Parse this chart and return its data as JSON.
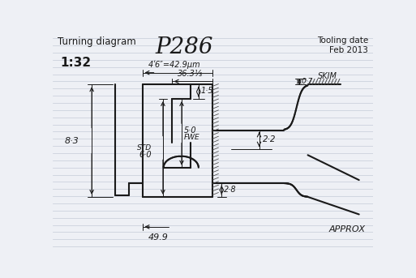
{
  "title": "P286",
  "top_left_text": "Turning diagram",
  "scale_text": "1:32",
  "top_right_text": "Tooling date\nFeb 2013",
  "bottom_left_dim": "49.9",
  "bottom_right_text": "APPROX",
  "dim_42_9": "4ʹ6″=42.9μm",
  "dim_36_3": "36.3⅓",
  "dim_0_7": "0·7",
  "dim_skim": "SKIM",
  "dim_2_2": "2·2",
  "dim_1_5": "1·5",
  "dim_8_3": "8·3",
  "dim_5_0": "5·0",
  "dim_fwe": "FWE",
  "dim_std": "STD",
  "dim_6_0": "6·0",
  "dim_2_8": "2·8",
  "bg_color": "#eef0f5",
  "line_color": "#1a1a1a",
  "ruled_color": "#c5ccd8",
  "hatch_color": "#444444"
}
